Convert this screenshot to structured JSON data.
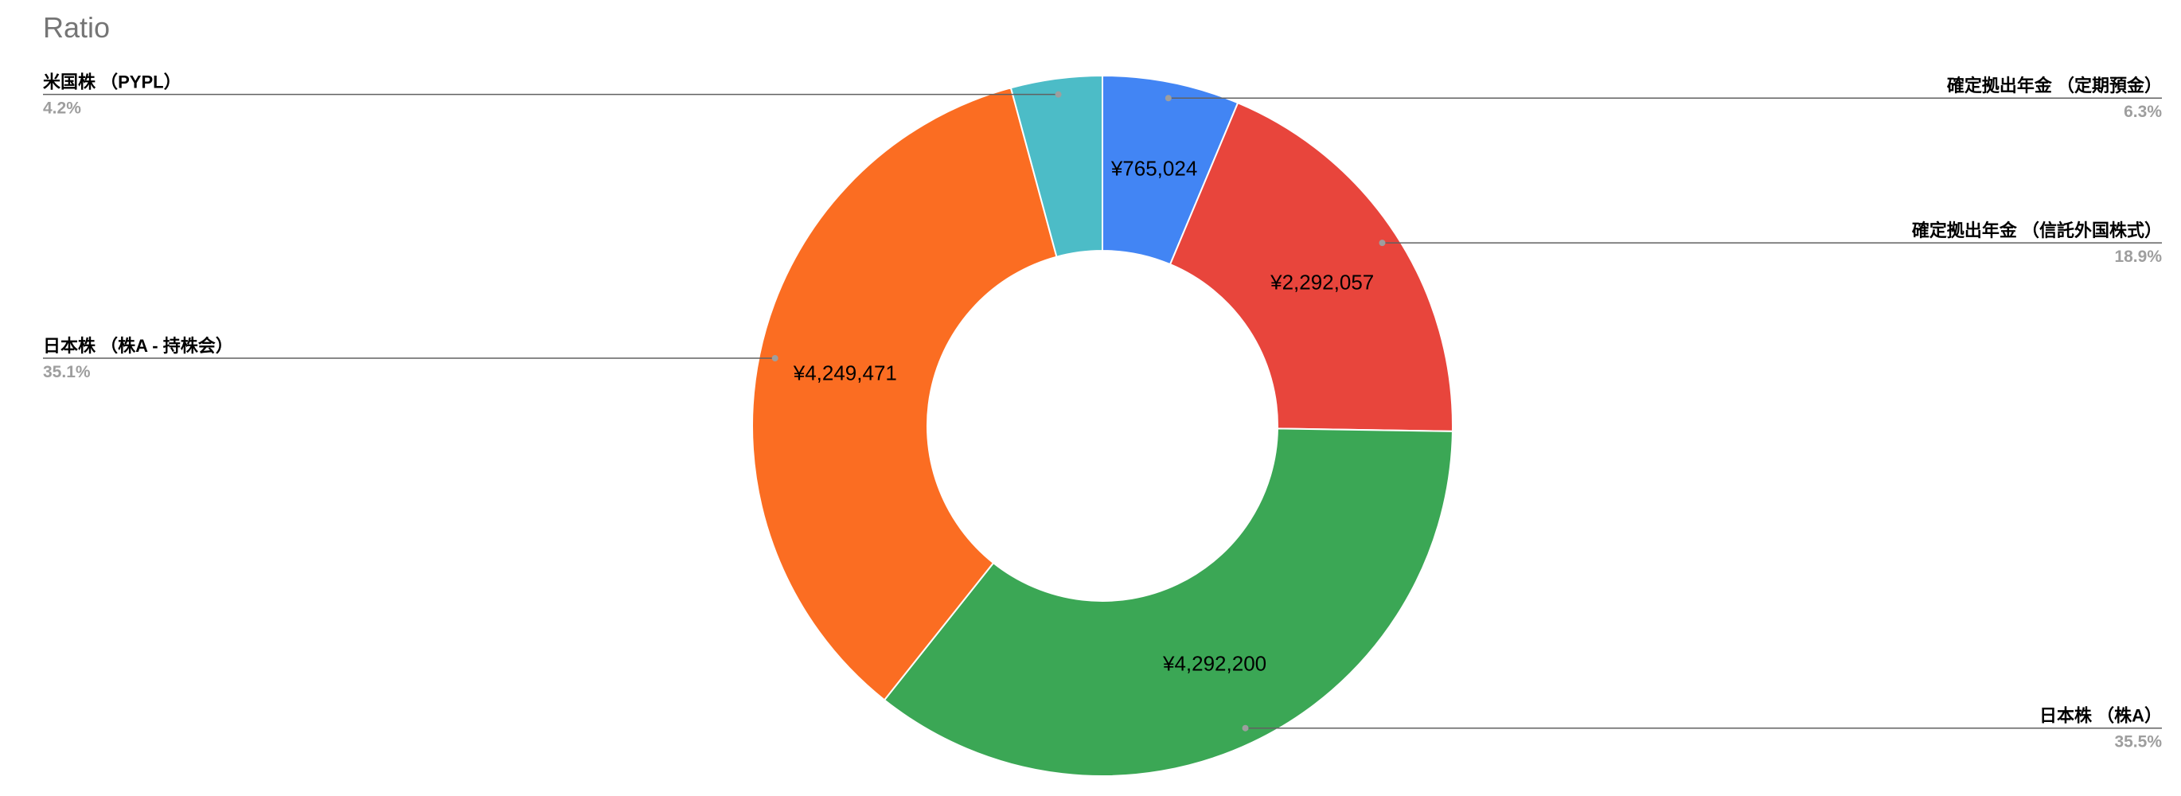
{
  "chart_data": {
    "type": "pie",
    "variant": "donut",
    "title": "Ratio",
    "legend": "none",
    "slices": [
      {
        "label": "確定拠出年金 （定期預金）",
        "value": 765024,
        "value_label": "¥765,024",
        "percent_label": "6.3%",
        "color": "#4285f4"
      },
      {
        "label": "確定拠出年金 （信託外国株式）",
        "value": 2292057,
        "value_label": "¥2,292,057",
        "percent_label": "18.9%",
        "color": "#e8453c"
      },
      {
        "label": "日本株 （株A）",
        "value": 4292200,
        "value_label": "¥4,292,200",
        "percent_label": "35.5%",
        "color": "#3ba755"
      },
      {
        "label": "日本株 （株A - 持株会）",
        "value": 4249471,
        "value_label": "¥4,249,471",
        "percent_label": "35.1%",
        "color": "#fb6d22"
      },
      {
        "label": "米国株 （PYPL）",
        "value": 510000,
        "value_label": "",
        "percent_label": "4.2%",
        "color": "#4cbcc7"
      }
    ]
  }
}
